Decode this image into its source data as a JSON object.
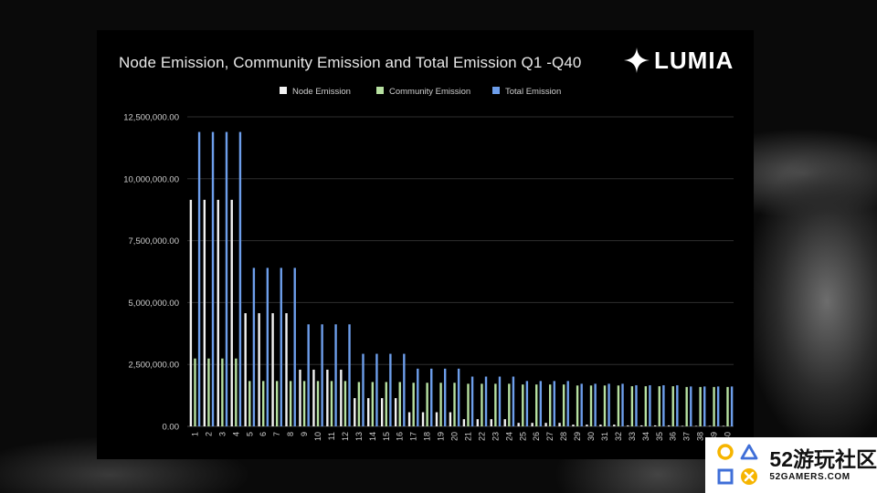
{
  "slide": {
    "title": "Node Emission, Community Emission and Total Emission Q1 -Q40",
    "logo_text": "LUMIA"
  },
  "watermark": {
    "line1": "52游玩社区",
    "line2": "52GAMERS.COM"
  },
  "colors": {
    "node": "#f2f2f2",
    "community": "#b7e1a1",
    "total": "#6d9eeb",
    "gridline": "#2e2e2e",
    "badge_yellow": "#f6b500",
    "badge_blue": "#3f6fd8"
  },
  "chart_data": {
    "type": "bar",
    "title": "Node Emission, Community Emission and Total Emission Q1 -Q40",
    "legend_position": "top",
    "grid": true,
    "ylim": [
      0,
      12500000
    ],
    "yticks": [
      {
        "value": 0,
        "label": "0.00"
      },
      {
        "value": 2500000,
        "label": "2,500,000.00"
      },
      {
        "value": 5000000,
        "label": "5,000,000.00"
      },
      {
        "value": 7500000,
        "label": "7,500,000.00"
      },
      {
        "value": 10000000,
        "label": "10,000,000.00"
      },
      {
        "value": 12500000,
        "label": "12,500,000.00"
      }
    ],
    "categories": [
      "1",
      "2",
      "3",
      "4",
      "5",
      "6",
      "7",
      "8",
      "9",
      "10",
      "11",
      "12",
      "13",
      "14",
      "15",
      "16",
      "17",
      "18",
      "19",
      "20",
      "21",
      "22",
      "23",
      "24",
      "25",
      "26",
      "27",
      "28",
      "29",
      "30",
      "31",
      "32",
      "33",
      "34",
      "35",
      "36",
      "37",
      "38",
      "39",
      "40"
    ],
    "series": [
      {
        "name": "Node Emission",
        "values": [
          9150000,
          9150000,
          9150000,
          9150000,
          4570000,
          4570000,
          4570000,
          4570000,
          2290000,
          2290000,
          2290000,
          2290000,
          1140000,
          1140000,
          1140000,
          1140000,
          570000,
          570000,
          570000,
          570000,
          290000,
          290000,
          290000,
          290000,
          140000,
          140000,
          140000,
          140000,
          70000,
          70000,
          70000,
          70000,
          40000,
          40000,
          40000,
          40000,
          20000,
          20000,
          20000,
          20000
        ]
      },
      {
        "name": "Community Emission",
        "values": [
          2740000,
          2740000,
          2740000,
          2740000,
          1830000,
          1830000,
          1830000,
          1830000,
          1830000,
          1830000,
          1830000,
          1830000,
          1790000,
          1790000,
          1790000,
          1790000,
          1760000,
          1760000,
          1760000,
          1760000,
          1720000,
          1720000,
          1720000,
          1720000,
          1690000,
          1690000,
          1690000,
          1690000,
          1650000,
          1650000,
          1650000,
          1650000,
          1620000,
          1620000,
          1620000,
          1620000,
          1590000,
          1590000,
          1590000,
          1590000
        ]
      },
      {
        "name": "Total Emission",
        "values": [
          11890000,
          11890000,
          11890000,
          11890000,
          6400000,
          6400000,
          6400000,
          6400000,
          4120000,
          4120000,
          4120000,
          4120000,
          2930000,
          2930000,
          2930000,
          2930000,
          2330000,
          2330000,
          2330000,
          2330000,
          2010000,
          2010000,
          2010000,
          2010000,
          1830000,
          1830000,
          1830000,
          1830000,
          1720000,
          1720000,
          1720000,
          1720000,
          1660000,
          1660000,
          1660000,
          1660000,
          1610000,
          1610000,
          1610000,
          1610000
        ]
      }
    ]
  }
}
